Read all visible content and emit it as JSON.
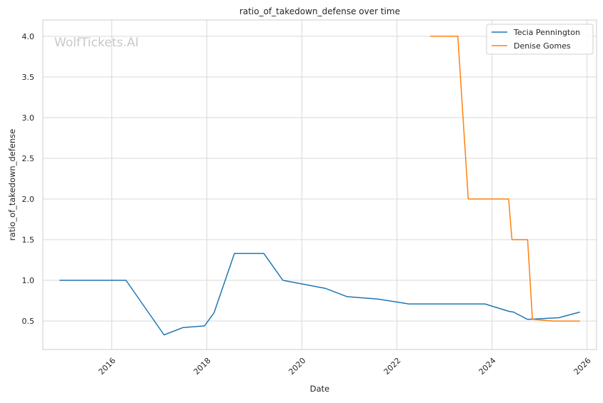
{
  "chart_data": {
    "type": "line",
    "title": "ratio_of_takedown_defense over time",
    "xlabel": "Date",
    "ylabel": "ratio_of_takedown_defense",
    "watermark": "WolfTickets.AI",
    "xlim": [
      2014.55,
      2026.2
    ],
    "ylim": [
      0.15,
      4.2
    ],
    "x_ticks": [
      2016,
      2018,
      2020,
      2022,
      2024,
      2026
    ],
    "x_tick_labels": [
      "2016",
      "2018",
      "2020",
      "2022",
      "2024",
      "2026"
    ],
    "y_ticks": [
      0.5,
      1.0,
      1.5,
      2.0,
      2.5,
      3.0,
      3.5,
      4.0
    ],
    "y_tick_labels": [
      "0.5",
      "1.0",
      "1.5",
      "2.0",
      "2.5",
      "3.0",
      "3.5",
      "4.0"
    ],
    "grid": true,
    "legend_position": "top-right",
    "series": [
      {
        "name": "Tecia Pennington",
        "color": "#1f77b4",
        "x": [
          2014.9,
          2016.3,
          2017.1,
          2017.5,
          2017.95,
          2018.15,
          2018.58,
          2019.2,
          2019.6,
          2020.5,
          2020.95,
          2021.6,
          2022.25,
          2023.0,
          2023.85,
          2024.35,
          2024.45,
          2024.75,
          2025.4,
          2025.85
        ],
        "y": [
          1.0,
          1.0,
          0.33,
          0.42,
          0.44,
          0.6,
          1.33,
          1.33,
          1.0,
          0.9,
          0.8,
          0.77,
          0.71,
          0.71,
          0.71,
          0.62,
          0.61,
          0.52,
          0.54,
          0.61
        ]
      },
      {
        "name": "Denise Gomes",
        "color": "#ff7f0e",
        "x": [
          2022.7,
          2023.28,
          2023.5,
          2024.35,
          2024.42,
          2024.75,
          2024.85,
          2025.3,
          2025.85
        ],
        "y": [
          4.0,
          4.0,
          2.0,
          2.0,
          1.5,
          1.5,
          0.52,
          0.5,
          0.5
        ]
      }
    ]
  }
}
